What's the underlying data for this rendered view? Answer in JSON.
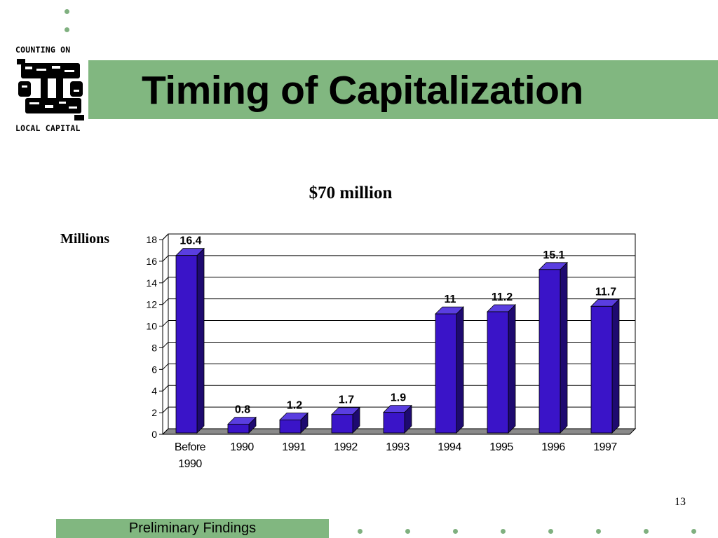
{
  "slide": {
    "title": "Timing of Capitalization",
    "page_number": "13",
    "footer": "Preliminary Findings"
  },
  "logo": {
    "top_text": "COUNTING ON",
    "bottom_text": "LOCAL CAPITAL"
  },
  "colors": {
    "accent_green": "#81b780",
    "bar_front": "#3a14c8",
    "bar_side": "#1e0a70",
    "bar_top": "#5a3ee0"
  },
  "chart_data": {
    "type": "bar",
    "title": "$70 million",
    "ylabel": "Millions",
    "xlabel": "",
    "categories": [
      [
        "Before",
        "1990"
      ],
      [
        "1990"
      ],
      [
        "1991"
      ],
      [
        "1992"
      ],
      [
        "1993"
      ],
      [
        "1994"
      ],
      [
        "1995"
      ],
      [
        "1996"
      ],
      [
        "1997"
      ]
    ],
    "values": [
      16.4,
      0.8,
      1.2,
      1.7,
      1.9,
      11,
      11.2,
      15.1,
      11.7
    ],
    "value_labels": [
      "16.4",
      "0.8",
      "1.2",
      "1.7",
      "1.9",
      "11",
      "11.2",
      "15.1",
      "11.7"
    ],
    "ylim": [
      0,
      18
    ],
    "yticks": [
      0,
      2,
      4,
      6,
      8,
      10,
      12,
      14,
      16,
      18
    ],
    "grid": true,
    "style": "3d"
  }
}
